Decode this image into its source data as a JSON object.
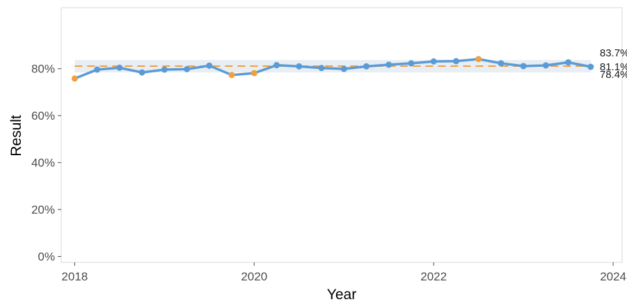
{
  "chart_data": {
    "type": "line",
    "title": "",
    "xlabel": "Year",
    "ylabel": "Result",
    "xlim": [
      2017.85,
      2024.1
    ],
    "ylim": [
      -2.5,
      106
    ],
    "x_ticks": [
      2018,
      2020,
      2022,
      2024
    ],
    "x_tick_labels": [
      "2018",
      "2020",
      "2022",
      "2024"
    ],
    "y_ticks": [
      0,
      20,
      40,
      60,
      80
    ],
    "y_tick_labels": [
      "0%",
      "20%",
      "40%",
      "60%",
      "80%"
    ],
    "grid": false,
    "legend": "none",
    "series": [
      {
        "color": "#5b9bd5",
        "points": [
          {
            "x": 2018.0,
            "y": 75.8,
            "highlight": true
          },
          {
            "x": 2018.25,
            "y": 79.6,
            "highlight": false
          },
          {
            "x": 2018.5,
            "y": 80.4,
            "highlight": false
          },
          {
            "x": 2018.75,
            "y": 78.4,
            "highlight": false
          },
          {
            "x": 2019.0,
            "y": 79.6,
            "highlight": false
          },
          {
            "x": 2019.25,
            "y": 79.8,
            "highlight": false
          },
          {
            "x": 2019.5,
            "y": 81.3,
            "highlight": false
          },
          {
            "x": 2019.75,
            "y": 77.3,
            "highlight": true
          },
          {
            "x": 2020.0,
            "y": 78.1,
            "highlight": true
          },
          {
            "x": 2020.25,
            "y": 81.5,
            "highlight": false
          },
          {
            "x": 2020.5,
            "y": 81.0,
            "highlight": false
          },
          {
            "x": 2020.75,
            "y": 80.3,
            "highlight": false
          },
          {
            "x": 2021.0,
            "y": 79.9,
            "highlight": false
          },
          {
            "x": 2021.25,
            "y": 81.0,
            "highlight": false
          },
          {
            "x": 2021.5,
            "y": 81.7,
            "highlight": false
          },
          {
            "x": 2021.75,
            "y": 82.3,
            "highlight": false
          },
          {
            "x": 2022.0,
            "y": 83.1,
            "highlight": false
          },
          {
            "x": 2022.25,
            "y": 83.2,
            "highlight": false
          },
          {
            "x": 2022.5,
            "y": 84.1,
            "highlight": true
          },
          {
            "x": 2022.75,
            "y": 82.3,
            "highlight": false
          },
          {
            "x": 2023.0,
            "y": 81.1,
            "highlight": false
          },
          {
            "x": 2023.25,
            "y": 81.4,
            "highlight": false
          },
          {
            "x": 2023.5,
            "y": 82.7,
            "highlight": false
          },
          {
            "x": 2023.75,
            "y": 80.8,
            "highlight": false
          }
        ]
      }
    ],
    "highlight_color": "#f0a040",
    "reference_lines": [
      {
        "label": "83.7%",
        "value": 83.7,
        "style": "band-upper"
      },
      {
        "label": "81.1%",
        "value": 81.1,
        "style": "dashed"
      },
      {
        "label": "78.4%",
        "value": 78.4,
        "style": "band-lower"
      }
    ],
    "band_color": "#e8eef4",
    "mean_line_color": "#f0a040"
  }
}
